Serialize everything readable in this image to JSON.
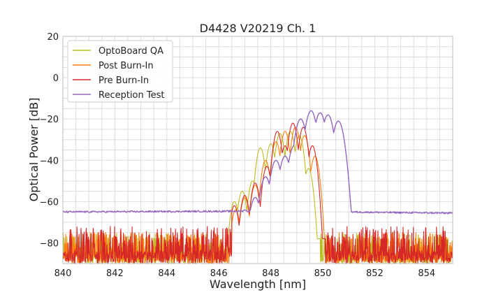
{
  "chart_data": {
    "type": "line",
    "title": "D4428 V20219 Ch. 1",
    "xlabel": "Wavelength [nm]",
    "ylabel": "Optical Power [dB]",
    "xlim": [
      840,
      855
    ],
    "ylim": [
      -90,
      20
    ],
    "xticks": [
      840,
      842,
      844,
      846,
      848,
      850,
      852,
      854
    ],
    "yticks": [
      -80,
      -60,
      -40,
      -20,
      0,
      20
    ],
    "ytick_labels": [
      "−80",
      "−60",
      "−40",
      "−20",
      "0",
      "20"
    ],
    "grid": true,
    "legend_position": "top-left",
    "series": [
      {
        "name": "OptoBoard QA",
        "color": "#bcbd22",
        "noise_range": [
          [
            840,
            846.3
          ],
          [
            849.9,
            855
          ]
        ],
        "noise_floor": [
          -90,
          -75
        ],
        "peaks": [
          {
            "x": 846.6,
            "y": -60
          },
          {
            "x": 846.9,
            "y": -55
          },
          {
            "x": 847.3,
            "y": -50
          },
          {
            "x": 847.6,
            "y": -34
          },
          {
            "x": 848.0,
            "y": -32
          },
          {
            "x": 848.35,
            "y": -27
          },
          {
            "x": 848.75,
            "y": -26
          },
          {
            "x": 849.1,
            "y": -28
          },
          {
            "x": 849.45,
            "y": -44
          }
        ]
      },
      {
        "name": "Post Burn-In",
        "color": "#ff7f0e",
        "noise_range": [
          [
            840,
            846.5
          ],
          [
            850.1,
            855
          ]
        ],
        "noise_floor": [
          -90,
          -75
        ],
        "peaks": [
          {
            "x": 846.65,
            "y": -64
          },
          {
            "x": 847.0,
            "y": -58
          },
          {
            "x": 847.4,
            "y": -52
          },
          {
            "x": 847.8,
            "y": -40
          },
          {
            "x": 848.2,
            "y": -31
          },
          {
            "x": 848.55,
            "y": -26
          },
          {
            "x": 848.95,
            "y": -24
          },
          {
            "x": 849.3,
            "y": -28
          },
          {
            "x": 849.7,
            "y": -38
          }
        ]
      },
      {
        "name": "Pre Burn-In",
        "color": "#d62728",
        "noise_range": [
          [
            840,
            846.5
          ],
          [
            850.1,
            855
          ]
        ],
        "noise_floor": [
          -90,
          -72
        ],
        "peaks": [
          {
            "x": 846.6,
            "y": -62
          },
          {
            "x": 847.0,
            "y": -57
          },
          {
            "x": 847.4,
            "y": -51
          },
          {
            "x": 847.85,
            "y": -43
          },
          {
            "x": 848.25,
            "y": -26
          },
          {
            "x": 848.55,
            "y": -33
          },
          {
            "x": 848.85,
            "y": -22
          },
          {
            "x": 849.25,
            "y": -24
          },
          {
            "x": 849.6,
            "y": -33
          }
        ]
      },
      {
        "name": "Reception Test",
        "color": "#9467bd",
        "baseline": -65,
        "peaks": [
          {
            "x": 847.0,
            "y": -64
          },
          {
            "x": 847.4,
            "y": -58
          },
          {
            "x": 847.8,
            "y": -48
          },
          {
            "x": 848.2,
            "y": -40
          },
          {
            "x": 848.55,
            "y": -38
          },
          {
            "x": 848.9,
            "y": -33
          },
          {
            "x": 849.15,
            "y": -20
          },
          {
            "x": 849.55,
            "y": -16
          },
          {
            "x": 849.9,
            "y": -17
          },
          {
            "x": 850.2,
            "y": -18
          },
          {
            "x": 850.6,
            "y": -21
          }
        ]
      }
    ]
  }
}
